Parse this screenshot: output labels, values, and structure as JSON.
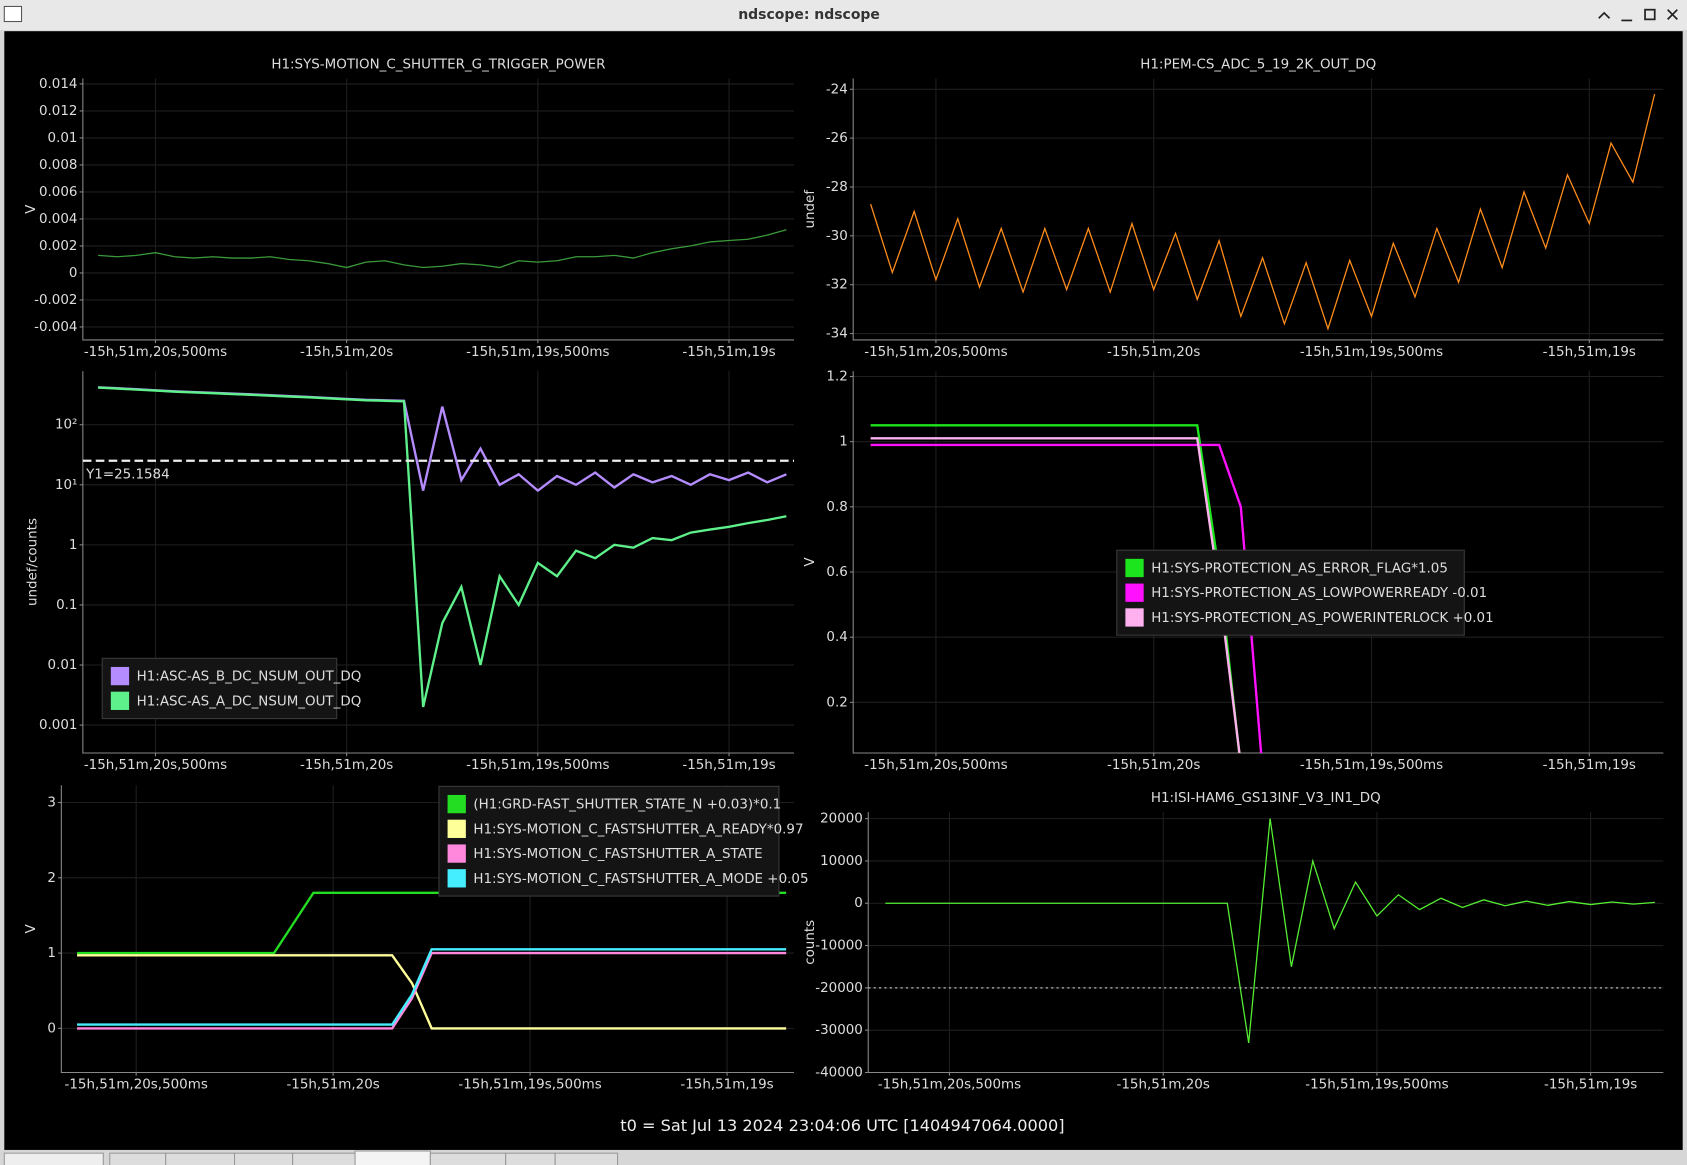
{
  "window": {
    "title": "ndscope: ndscope",
    "footer": "t0 = Sat Jul 13 2024 23:04:06 UTC [1404947064.0000]"
  },
  "chart_data": [
    {
      "type": "line",
      "title": "H1:SYS-MOTION_C_SHUTTER_G_TRIGGER_POWER",
      "ylabel": "V",
      "grid": true,
      "x": [
        -57080.65,
        -57080.6,
        -57080.55,
        -57080.5,
        -57080.45,
        -57080.4,
        -57080.35,
        -57080.3,
        -57080.25,
        -57080.2,
        -57080.15,
        -57080.1,
        -57080.05,
        -57080,
        -57079.95,
        -57079.9,
        -57079.85,
        -57079.8,
        -57079.75,
        -57079.7,
        -57079.65,
        -57079.6,
        -57079.55,
        -57079.5,
        -57079.45,
        -57079.4,
        -57079.35,
        -57079.3,
        -57079.25,
        -57079.2,
        -57079.15,
        -57079.1,
        -57079.05,
        -57079,
        -57078.95,
        -57078.9,
        -57078.85
      ],
      "xlim": [
        -57080.69,
        -57078.83
      ],
      "xticks": [
        {
          "value": -57080.5,
          "label": "-15h,51m,20s,500ms"
        },
        {
          "value": -57080,
          "label": "-15h,51m,20s"
        },
        {
          "value": -57079.5,
          "label": "-15h,51m,19s,500ms"
        },
        {
          "value": -57079,
          "label": "-15h,51m,19s"
        }
      ],
      "ylim": [
        -0.00496,
        0.0144
      ],
      "yticks": [
        -0.004,
        -0.002,
        0,
        0.002,
        0.004,
        0.006,
        0.008,
        0.01,
        0.012,
        0.014
      ],
      "series": [
        {
          "color": "#3a9a3a",
          "values": [
            0.0013,
            0.0012,
            0.0013,
            0.0015,
            0.0012,
            0.0011,
            0.0012,
            0.0011,
            0.0011,
            0.0012,
            0.001,
            0.0009,
            0.0007,
            0.0004,
            0.0008,
            0.0009,
            0.0006,
            0.0004,
            0.0005,
            0.0007,
            0.0006,
            0.0004,
            0.0009,
            0.0008,
            0.0009,
            0.0012,
            0.0012,
            0.0013,
            0.0011,
            0.0015,
            0.0018,
            0.002,
            0.0023,
            0.0024,
            0.0025,
            0.0028,
            0.0032
          ]
        }
      ]
    },
    {
      "type": "line",
      "title": "H1:PEM-CS_ADC_5_19_2K_OUT_DQ",
      "ylabel": "undef",
      "grid": true,
      "x": [
        -57080.65,
        -57080.6,
        -57080.55,
        -57080.5,
        -57080.45,
        -57080.4,
        -57080.35,
        -57080.3,
        -57080.25,
        -57080.2,
        -57080.15,
        -57080.1,
        -57080.05,
        -57080,
        -57079.95,
        -57079.9,
        -57079.85,
        -57079.8,
        -57079.75,
        -57079.7,
        -57079.65,
        -57079.6,
        -57079.55,
        -57079.5,
        -57079.45,
        -57079.4,
        -57079.35,
        -57079.3,
        -57079.25,
        -57079.2,
        -57079.15,
        -57079.1,
        -57079.05,
        -57079,
        -57078.95,
        -57078.9,
        -57078.85
      ],
      "xlim": [
        -57080.69,
        -57078.83
      ],
      "xticks": [
        {
          "value": -57080.5,
          "label": "-15h,51m,20s,500ms"
        },
        {
          "value": -57080,
          "label": "-15h,51m,20s"
        },
        {
          "value": -57079.5,
          "label": "-15h,51m,19s,500ms"
        },
        {
          "value": -57079,
          "label": "-15h,51m,19s"
        }
      ],
      "ylim": [
        -34.26,
        -23.56
      ],
      "yticks": [
        -34,
        -32,
        -30,
        -28,
        -26,
        -24
      ],
      "series": [
        {
          "color": "#ff8c1a",
          "values": [
            -28.7,
            -31.5,
            -29.0,
            -31.8,
            -29.3,
            -32.1,
            -29.7,
            -32.3,
            -29.7,
            -32.2,
            -29.7,
            -32.3,
            -29.5,
            -32.2,
            -29.9,
            -32.6,
            -30.2,
            -33.3,
            -30.9,
            -33.6,
            -31.1,
            -33.8,
            -31.0,
            -33.3,
            -30.3,
            -32.5,
            -29.7,
            -31.9,
            -28.9,
            -31.3,
            -28.2,
            -30.5,
            -27.5,
            -29.5,
            -26.2,
            -27.8,
            -24.2
          ]
        }
      ]
    },
    {
      "type": "line",
      "ylabel": "undef/counts",
      "grid": true,
      "log_y": true,
      "legend": "lower left",
      "x": [
        -57080.65,
        -57080.6,
        -57080.55,
        -57080.5,
        -57080.45,
        -57080.4,
        -57080.35,
        -57080.3,
        -57080.25,
        -57080.2,
        -57080.15,
        -57080.1,
        -57080.05,
        -57080,
        -57079.95,
        -57079.9,
        -57079.85,
        -57079.8,
        -57079.75,
        -57079.7,
        -57079.65,
        -57079.6,
        -57079.55,
        -57079.5,
        -57079.45,
        -57079.4,
        -57079.35,
        -57079.3,
        -57079.25,
        -57079.2,
        -57079.15,
        -57079.1,
        -57079.05,
        -57079,
        -57078.95,
        -57078.9,
        -57078.85
      ],
      "xlim": [
        -57080.69,
        -57078.83
      ],
      "xticks": [
        {
          "value": -57080.5,
          "label": "-15h,51m,20s,500ms"
        },
        {
          "value": -57080,
          "label": "-15h,51m,20s"
        },
        {
          "value": -57079.5,
          "label": "-15h,51m,19s,500ms"
        },
        {
          "value": -57079,
          "label": "-15h,51m,19s"
        }
      ],
      "ylim": [
        0.000343,
        781
      ],
      "yticks": [
        0.001,
        0.01,
        0.1,
        1,
        {
          "value": 10,
          "label": "10¹"
        },
        {
          "value": 100,
          "label": "10²"
        }
      ],
      "cursors": [
        {
          "value": 25.1584,
          "label": "Y1=25.1584"
        }
      ],
      "series": [
        {
          "name": "H1:ASC-AS_B_DC_NSUM_OUT_DQ",
          "color": "#b58cff",
          "values": [
            420,
            405,
            390,
            375,
            360,
            350,
            340,
            330,
            320,
            310,
            300,
            290,
            280,
            270,
            260,
            255,
            250,
            8,
            200,
            12,
            40,
            10,
            15,
            8,
            14,
            10,
            16,
            9,
            15,
            11,
            14,
            10,
            15,
            12,
            16,
            11,
            15
          ]
        },
        {
          "name": "H1:ASC-AS_A_DC_NSUM_OUT_DQ",
          "color": "#5ef08a",
          "values": [
            415,
            400,
            385,
            370,
            355,
            345,
            335,
            325,
            315,
            305,
            295,
            285,
            275,
            265,
            255,
            250,
            245,
            0.002,
            0.05,
            0.2,
            0.01,
            0.3,
            0.1,
            0.5,
            0.3,
            0.8,
            0.6,
            1,
            0.9,
            1.3,
            1.2,
            1.6,
            1.8,
            2,
            2.3,
            2.6,
            3
          ]
        }
      ]
    },
    {
      "type": "line",
      "ylabel": "V",
      "grid": true,
      "legend": "center",
      "x": [
        -57080.65,
        -57080.6,
        -57080.55,
        -57080.5,
        -57080.45,
        -57080.4,
        -57080.35,
        -57080.3,
        -57080.25,
        -57080.2,
        -57080.15,
        -57080.1,
        -57080.05,
        -57080,
        -57079.95,
        -57079.9,
        -57079.85,
        -57079.8,
        -57079.75,
        -57079.7,
        -57079.65,
        -57079.6,
        -57079.55,
        -57079.5,
        -57079.45,
        -57079.4,
        -57079.35,
        -57079.3,
        -57079.25,
        -57079.2,
        -57079.15,
        -57079.1,
        -57079.05,
        -57079,
        -57078.95,
        -57078.9,
        -57078.85
      ],
      "xlim": [
        -57080.69,
        -57078.83
      ],
      "xticks": [
        {
          "value": -57080.5,
          "label": "-15h,51m,20s,500ms"
        },
        {
          "value": -57080,
          "label": "-15h,51m,20s"
        },
        {
          "value": -57079.5,
          "label": "-15h,51m,19s,500ms"
        },
        {
          "value": -57079,
          "label": "-15h,51m,19s"
        }
      ],
      "ylim": [
        0.0445,
        1.2165
      ],
      "yticks": [
        0.2,
        0.4,
        0.6,
        0.8,
        1,
        1.2
      ],
      "series": [
        {
          "name": "H1:SYS-PROTECTION_AS_ERROR_FLAG*1.05",
          "color": "#1de51d",
          "values": [
            1.05,
            1.05,
            1.05,
            1.05,
            1.05,
            1.05,
            1.05,
            1.05,
            1.05,
            1.05,
            1.05,
            1.05,
            1.05,
            1.05,
            1.05,
            1.05,
            0.6,
            0,
            0,
            0,
            0,
            0,
            0,
            0,
            0,
            0,
            0,
            0,
            0,
            0,
            0,
            0,
            0,
            0,
            0,
            0,
            0
          ]
        },
        {
          "name": "H1:SYS-PROTECTION_AS_LOWPOWERREADY -0.01",
          "color": "#ff10ff",
          "values": [
            0.99,
            0.99,
            0.99,
            0.99,
            0.99,
            0.99,
            0.99,
            0.99,
            0.99,
            0.99,
            0.99,
            0.99,
            0.99,
            0.99,
            0.99,
            0.99,
            0.99,
            0.8,
            -0.01,
            -0.01,
            -0.01,
            -0.01,
            -0.01,
            -0.01,
            -0.01,
            -0.01,
            -0.01,
            -0.01,
            -0.01,
            -0.01,
            -0.01,
            -0.01,
            -0.01,
            -0.01,
            -0.01,
            -0.01,
            -0.01
          ]
        },
        {
          "name": "H1:SYS-PROTECTION_AS_POWERINTERLOCK +0.01",
          "color": "#ffb0ee",
          "values": [
            1.01,
            1.01,
            1.01,
            1.01,
            1.01,
            1.01,
            1.01,
            1.01,
            1.01,
            1.01,
            1.01,
            1.01,
            1.01,
            1.01,
            1.01,
            1.01,
            0.55,
            0.01,
            0.01,
            0.01,
            0.01,
            0.01,
            0.01,
            0.01,
            0.01,
            0.01,
            0.01,
            0.01,
            0.01,
            0.01,
            0.01,
            0.01,
            0.01,
            0.01,
            0.01,
            0.01,
            0.01
          ]
        }
      ]
    },
    {
      "type": "line",
      "ylabel": "V",
      "grid": true,
      "legend": "upper right",
      "x": [
        -57080.65,
        -57080.6,
        -57080.55,
        -57080.5,
        -57080.45,
        -57080.4,
        -57080.35,
        -57080.3,
        -57080.25,
        -57080.2,
        -57080.15,
        -57080.1,
        -57080.05,
        -57080,
        -57079.95,
        -57079.9,
        -57079.85,
        -57079.8,
        -57079.75,
        -57079.7,
        -57079.65,
        -57079.6,
        -57079.55,
        -57079.5,
        -57079.45,
        -57079.4,
        -57079.35,
        -57079.3,
        -57079.25,
        -57079.2,
        -57079.15,
        -57079.1,
        -57079.05,
        -57079,
        -57078.95,
        -57078.9,
        -57078.85
      ],
      "xlim": [
        -57080.69,
        -57078.83
      ],
      "xticks": [
        {
          "value": -57080.5,
          "label": "-15h,51m,20s,500ms"
        },
        {
          "value": -57080,
          "label": "-15h,51m,20s"
        },
        {
          "value": -57079.5,
          "label": "-15h,51m,19s,500ms"
        },
        {
          "value": -57079,
          "label": "-15h,51m,19s"
        }
      ],
      "ylim": [
        -0.586,
        3.229
      ],
      "yticks": [
        0,
        1,
        2,
        3
      ],
      "series": [
        {
          "name": "(H1:GRD-FAST_SHUTTER_STATE_N +0.03)*0.1",
          "color": "#22dd22",
          "values": [
            1,
            1,
            1,
            1,
            1,
            1,
            1,
            1,
            1,
            1,
            1,
            1.4,
            1.8,
            1.8,
            1.8,
            1.8,
            1.8,
            1.8,
            1.8,
            1.8,
            1.8,
            1.8,
            1.8,
            1.8,
            1.8,
            1.8,
            1.8,
            1.8,
            1.8,
            1.8,
            1.8,
            1.8,
            1.8,
            1.8,
            1.8,
            1.8,
            1.8
          ]
        },
        {
          "name": "H1:SYS-MOTION_C_FASTSHUTTER_A_READY*0.97",
          "color": "#ffff99",
          "values": [
            0.97,
            0.97,
            0.97,
            0.97,
            0.97,
            0.97,
            0.97,
            0.97,
            0.97,
            0.97,
            0.97,
            0.97,
            0.97,
            0.97,
            0.97,
            0.97,
            0.97,
            0.6,
            0,
            0,
            0,
            0,
            0,
            0,
            0,
            0,
            0,
            0,
            0,
            0,
            0,
            0,
            0,
            0,
            0,
            0,
            0
          ]
        },
        {
          "name": "H1:SYS-MOTION_C_FASTSHUTTER_A_STATE",
          "color": "#ff88dd",
          "values": [
            0,
            0,
            0,
            0,
            0,
            0,
            0,
            0,
            0,
            0,
            0,
            0,
            0,
            0,
            0,
            0,
            0,
            0.4,
            1,
            1,
            1,
            1,
            1,
            1,
            1,
            1,
            1,
            1,
            1,
            1,
            1,
            1,
            1,
            1,
            1,
            1,
            1
          ]
        },
        {
          "name": "H1:SYS-MOTION_C_FASTSHUTTER_A_MODE +0.05",
          "color": "#44eeff",
          "values": [
            0.05,
            0.05,
            0.05,
            0.05,
            0.05,
            0.05,
            0.05,
            0.05,
            0.05,
            0.05,
            0.05,
            0.05,
            0.05,
            0.05,
            0.05,
            0.05,
            0.05,
            0.45,
            1.05,
            1.05,
            1.05,
            1.05,
            1.05,
            1.05,
            1.05,
            1.05,
            1.05,
            1.05,
            1.05,
            1.05,
            1.05,
            1.05,
            1.05,
            1.05,
            1.05,
            1.05,
            1.05
          ]
        }
      ]
    },
    {
      "type": "line",
      "title": "H1:ISI-HAM6_GS13INF_V3_IN1_DQ",
      "ylabel": "counts",
      "grid": true,
      "x": [
        -57080.65,
        -57080.6,
        -57080.55,
        -57080.5,
        -57080.45,
        -57080.4,
        -57080.35,
        -57080.3,
        -57080.25,
        -57080.2,
        -57080.15,
        -57080.1,
        -57080.05,
        -57080,
        -57079.95,
        -57079.9,
        -57079.85,
        -57079.8,
        -57079.75,
        -57079.7,
        -57079.65,
        -57079.6,
        -57079.55,
        -57079.5,
        -57079.45,
        -57079.4,
        -57079.35,
        -57079.3,
        -57079.25,
        -57079.2,
        -57079.15,
        -57079.1,
        -57079.05,
        -57079,
        -57078.95,
        -57078.9,
        -57078.85
      ],
      "xlim": [
        -57080.69,
        -57078.83
      ],
      "xticks": [
        {
          "value": -57080.5,
          "label": "-15h,51m,20s,500ms"
        },
        {
          "value": -57080,
          "label": "-15h,51m,20s"
        },
        {
          "value": -57079.5,
          "label": "-15h,51m,19s,500ms"
        },
        {
          "value": -57079,
          "label": "-15h,51m,19s"
        }
      ],
      "ylim": [
        -40000,
        21527
      ],
      "yticks": [
        -40000,
        -30000,
        -20000,
        -10000,
        0,
        10000,
        20000
      ],
      "cursors": [
        -20000
      ],
      "series": [
        {
          "color": "#55ee33",
          "values": [
            0,
            0,
            0,
            0,
            0,
            0,
            0,
            0,
            0,
            0,
            0,
            0,
            0,
            0,
            0,
            0,
            0,
            -33000,
            20000,
            -15000,
            10000,
            -6000,
            5000,
            -3000,
            2000,
            -1500,
            1200,
            -1000,
            800,
            -600,
            500,
            -500,
            400,
            -300,
            300,
            -200,
            200
          ]
        }
      ]
    }
  ]
}
